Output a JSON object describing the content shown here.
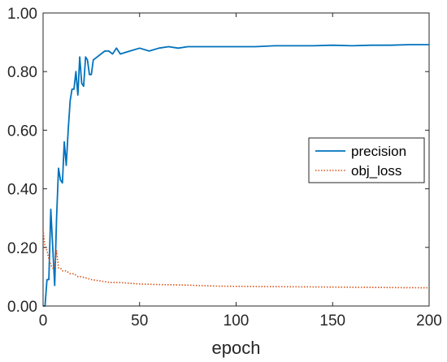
{
  "chart_data": {
    "type": "line",
    "title": "",
    "xlabel": "epoch",
    "ylabel": "",
    "xlim": [
      0,
      200
    ],
    "ylim": [
      0,
      1.0
    ],
    "xticks": [
      0,
      50,
      100,
      150,
      200
    ],
    "xtick_labels": [
      "0",
      "50",
      "100",
      "150",
      "200"
    ],
    "yticks": [
      0,
      0.2,
      0.4,
      0.6,
      0.8,
      1.0
    ],
    "ytick_labels": [
      "0.00",
      "0.20",
      "0.40",
      "0.60",
      "0.80",
      "1.00"
    ],
    "grid": false,
    "legend_position": "right",
    "series": [
      {
        "name": "precision",
        "color": "#0072BD",
        "style": "solid",
        "x": [
          0,
          1,
          2,
          3,
          4,
          5,
          6,
          7,
          8,
          9,
          10,
          11,
          12,
          13,
          14,
          15,
          16,
          17,
          18,
          19,
          20,
          21,
          22,
          23,
          24,
          25,
          26,
          28,
          30,
          32,
          34,
          36,
          38,
          40,
          45,
          50,
          55,
          60,
          65,
          70,
          75,
          80,
          90,
          100,
          110,
          120,
          130,
          140,
          150,
          160,
          170,
          180,
          190,
          200
        ],
        "values": [
          0.0,
          0.0,
          0.09,
          0.09,
          0.33,
          0.2,
          0.07,
          0.3,
          0.47,
          0.43,
          0.42,
          0.56,
          0.48,
          0.6,
          0.7,
          0.74,
          0.74,
          0.8,
          0.72,
          0.85,
          0.76,
          0.75,
          0.85,
          0.84,
          0.79,
          0.79,
          0.84,
          0.85,
          0.86,
          0.87,
          0.87,
          0.86,
          0.88,
          0.86,
          0.87,
          0.88,
          0.87,
          0.88,
          0.885,
          0.88,
          0.885,
          0.885,
          0.885,
          0.885,
          0.885,
          0.888,
          0.888,
          0.888,
          0.89,
          0.888,
          0.89,
          0.89,
          0.892,
          0.892
        ]
      },
      {
        "name": "obj_loss",
        "color": "#D95319",
        "style": "dotted",
        "x": [
          0,
          1,
          2,
          3,
          4,
          5,
          6,
          7,
          8,
          9,
          10,
          12,
          14,
          16,
          18,
          20,
          25,
          30,
          35,
          40,
          50,
          60,
          70,
          80,
          90,
          100,
          120,
          140,
          160,
          180,
          200
        ],
        "values": [
          0.26,
          0.2,
          0.19,
          0.16,
          0.14,
          0.13,
          0.13,
          0.19,
          0.13,
          0.13,
          0.12,
          0.12,
          0.11,
          0.11,
          0.1,
          0.1,
          0.09,
          0.085,
          0.08,
          0.08,
          0.075,
          0.073,
          0.072,
          0.07,
          0.068,
          0.067,
          0.066,
          0.065,
          0.064,
          0.063,
          0.062
        ]
      }
    ]
  }
}
